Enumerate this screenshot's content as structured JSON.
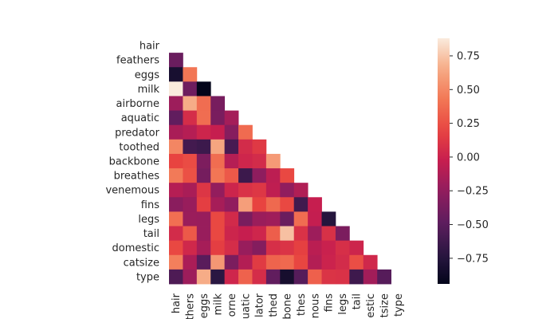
{
  "chart_data": {
    "type": "heatmap",
    "variables": [
      "hair",
      "feathers",
      "eggs",
      "milk",
      "airborne",
      "aquatic",
      "predator",
      "toothed",
      "backbone",
      "breathes",
      "venemous",
      "fins",
      "legs",
      "tail",
      "domestic",
      "catsize",
      "type"
    ],
    "x_tick_labels": [
      "hair",
      "thers",
      "eggs",
      "milk",
      "orne",
      "uatic",
      "lator",
      "thed",
      "bone",
      "thes",
      "nous",
      "fins",
      "legs",
      "tail",
      "estic",
      "tsize",
      "type"
    ],
    "mask": "upper-triangle-including-diagonal",
    "lower_triangle_values": [
      [],
      [
        -0.43
      ],
      [
        -0.82,
        0.42
      ],
      [
        0.88,
        -0.41,
        -0.94
      ],
      [
        -0.2,
        0.66,
        0.38,
        -0.37
      ],
      [
        -0.47,
        0.06,
        0.38,
        -0.36,
        -0.17
      ],
      [
        -0.15,
        -0.1,
        0.01,
        -0.03,
        -0.3,
        0.37
      ],
      [
        0.49,
        -0.61,
        -0.64,
        0.63,
        -0.59,
        0.05,
        0.13
      ],
      [
        0.19,
        0.23,
        -0.34,
        0.38,
        -0.1,
        0.02,
        0.05,
        0.58
      ],
      [
        0.44,
        0.25,
        -0.38,
        0.42,
        0.29,
        -0.64,
        -0.26,
        -0.07,
        0.21
      ],
      [
        -0.1,
        -0.15,
        0.11,
        -0.24,
        0.01,
        0.09,
        0.12,
        -0.06,
        -0.25,
        -0.12
      ],
      [
        -0.28,
        -0.22,
        0.16,
        -0.16,
        -0.25,
        0.6,
        0.19,
        0.36,
        0.21,
        -0.62,
        -0.03
      ],
      [
        0.39,
        -0.21,
        -0.22,
        0.21,
        0.04,
        -0.36,
        -0.21,
        -0.19,
        -0.43,
        0.38,
        -0.04,
        -0.75
      ],
      [
        0.05,
        0.29,
        -0.22,
        0.21,
        0.01,
        -0.03,
        0.02,
        0.31,
        0.73,
        0.09,
        -0.2,
        0.08,
        -0.35
      ],
      [
        0.21,
        0.03,
        -0.16,
        0.16,
        0.06,
        -0.22,
        -0.31,
        0.07,
        0.1,
        0.17,
        -0.08,
        -0.01,
        0.07,
        0.01
      ],
      [
        0.46,
        -0.14,
        -0.51,
        0.57,
        -0.35,
        -0.11,
        0.14,
        0.34,
        0.36,
        0.2,
        -0.11,
        0.0,
        0.05,
        0.24,
        0.03
      ],
      [
        -0.56,
        -0.2,
        0.66,
        -0.72,
        0.02,
        0.33,
        0.06,
        -0.47,
        -0.83,
        -0.52,
        0.32,
        0.1,
        0.09,
        -0.63,
        -0.18,
        -0.52
      ]
    ],
    "vmin": -0.94,
    "vmax": 0.88,
    "colorbar_ticks": [
      0.75,
      0.5,
      0.25,
      0.0,
      -0.25,
      -0.5,
      -0.75
    ],
    "colorbar_tick_labels": [
      "0.75",
      "0.50",
      "0.25",
      "0.00",
      "−0.25",
      "−0.50",
      "−0.75"
    ],
    "colormap": "rocket",
    "grid": false,
    "legend": "colorbar-right",
    "title": "",
    "xlabel": "",
    "ylabel": ""
  }
}
